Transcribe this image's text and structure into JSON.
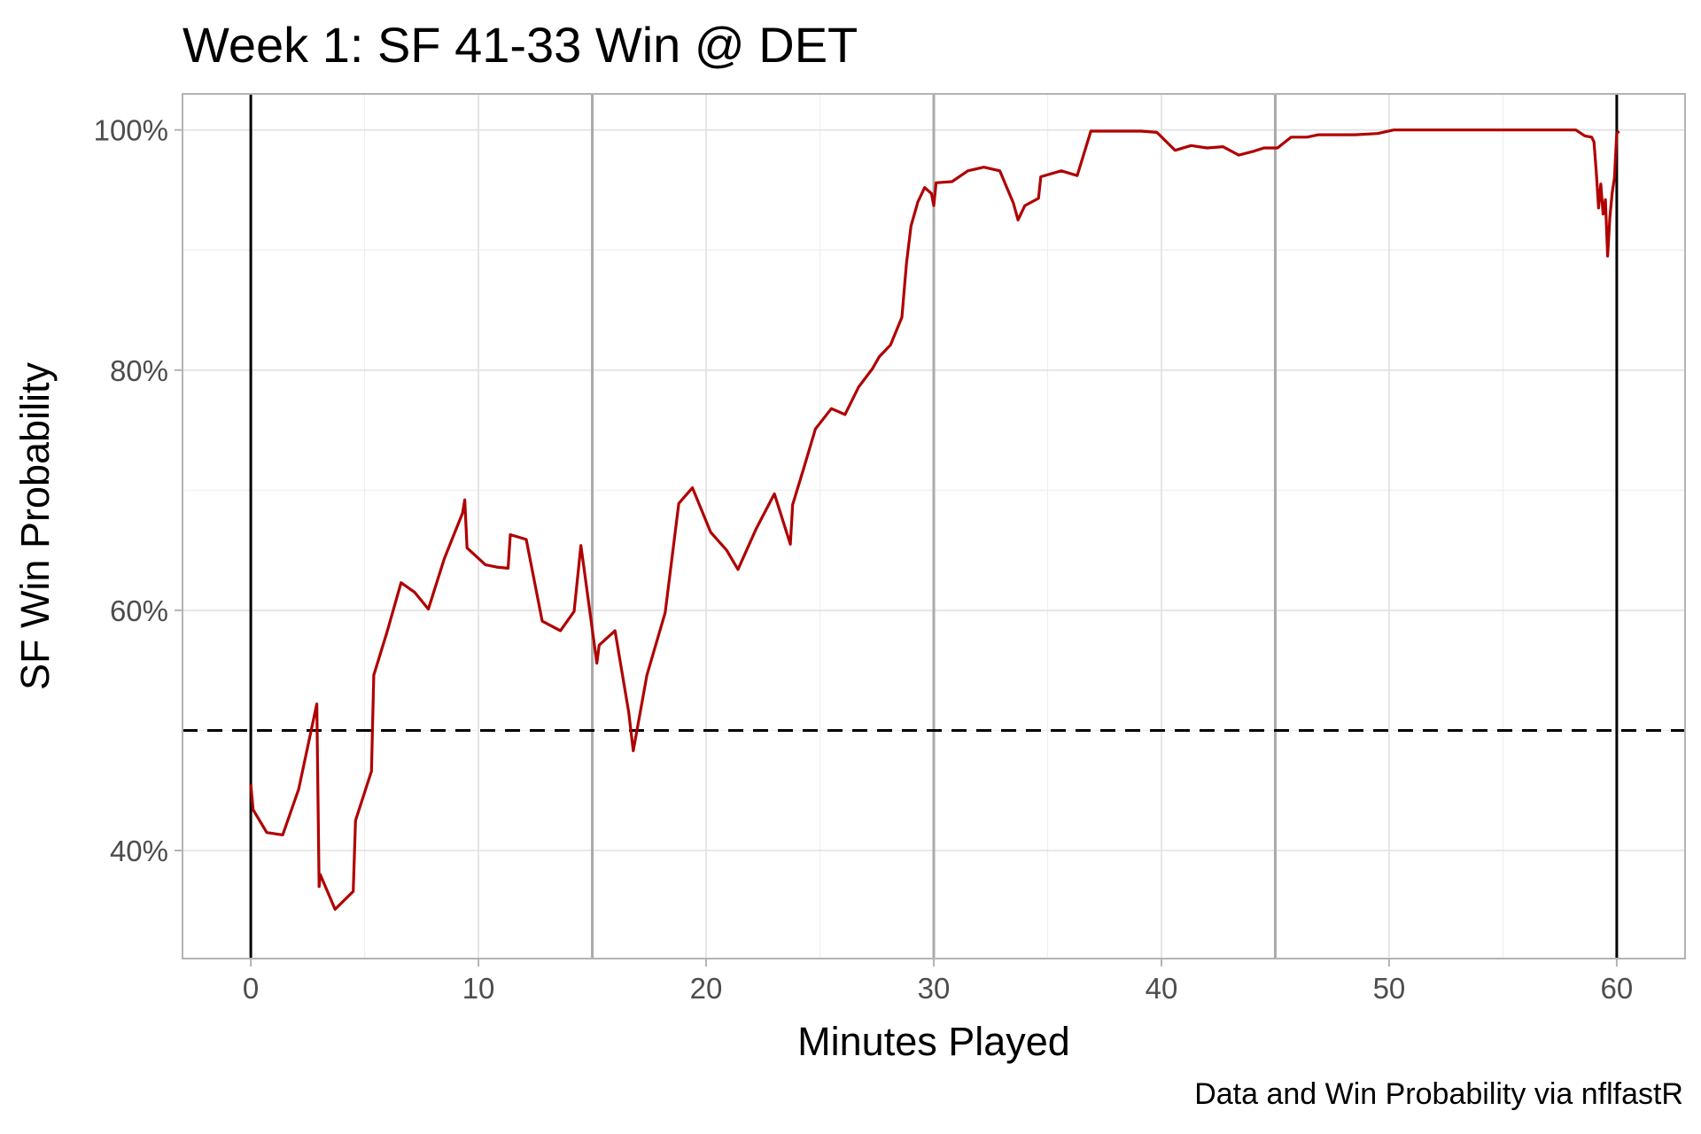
{
  "chart_data": {
    "type": "line",
    "title": "Week 1: SF 41-33 Win @ DET",
    "caption": "Data and Win Probability via nflfastR",
    "xlabel": "Minutes Played",
    "ylabel": "SF Win Probability",
    "xlim": [
      -3,
      63
    ],
    "ylim": [
      0.31,
      1.03
    ],
    "x_ticks": [
      0,
      10,
      20,
      30,
      40,
      50,
      60
    ],
    "x_tick_labels": [
      "0",
      "10",
      "20",
      "30",
      "40",
      "50",
      "60"
    ],
    "y_ticks": [
      0.4,
      0.6,
      0.8,
      1.0
    ],
    "y_tick_labels": [
      "40%",
      "60%",
      "80%",
      "100%"
    ],
    "grid": true,
    "reference_lines": {
      "horizontal_dashed": 0.5,
      "game_bounds": [
        0,
        60
      ],
      "quarter_marks": [
        15,
        30,
        45
      ]
    },
    "colors": {
      "line": "#b00000",
      "reference": "#000000",
      "quarter": "#aaaaaa",
      "grid": "#e0e0e0"
    },
    "series": [
      {
        "values": [
          [
            0.0,
            0.455
          ],
          [
            0.1,
            0.434
          ],
          [
            0.7,
            0.415
          ],
          [
            1.4,
            0.413
          ],
          [
            2.1,
            0.451
          ],
          [
            2.9,
            0.522
          ],
          [
            3.0,
            0.37
          ],
          [
            3.05,
            0.38
          ],
          [
            3.7,
            0.351
          ],
          [
            4.5,
            0.366
          ],
          [
            4.6,
            0.425
          ],
          [
            5.3,
            0.466
          ],
          [
            5.4,
            0.546
          ],
          [
            6.0,
            0.583
          ],
          [
            6.6,
            0.623
          ],
          [
            7.2,
            0.615
          ],
          [
            7.8,
            0.601
          ],
          [
            8.5,
            0.643
          ],
          [
            9.3,
            0.681
          ],
          [
            9.4,
            0.692
          ],
          [
            9.5,
            0.652
          ],
          [
            10.3,
            0.638
          ],
          [
            10.8,
            0.636
          ],
          [
            11.3,
            0.635
          ],
          [
            11.4,
            0.663
          ],
          [
            12.1,
            0.659
          ],
          [
            12.8,
            0.591
          ],
          [
            13.6,
            0.583
          ],
          [
            14.2,
            0.599
          ],
          [
            14.5,
            0.654
          ],
          [
            15.2,
            0.556
          ],
          [
            15.3,
            0.571
          ],
          [
            16.0,
            0.583
          ],
          [
            16.6,
            0.515
          ],
          [
            16.8,
            0.483
          ],
          [
            17.4,
            0.546
          ],
          [
            18.2,
            0.598
          ],
          [
            18.8,
            0.689
          ],
          [
            19.4,
            0.702
          ],
          [
            20.2,
            0.665
          ],
          [
            20.9,
            0.65
          ],
          [
            21.4,
            0.634
          ],
          [
            22.2,
            0.668
          ],
          [
            23.0,
            0.697
          ],
          [
            23.7,
            0.655
          ],
          [
            23.8,
            0.688
          ],
          [
            24.3,
            0.719
          ],
          [
            24.8,
            0.751
          ],
          [
            25.5,
            0.768
          ],
          [
            26.1,
            0.763
          ],
          [
            26.7,
            0.786
          ],
          [
            27.3,
            0.801
          ],
          [
            27.6,
            0.811
          ],
          [
            28.1,
            0.821
          ],
          [
            28.6,
            0.844
          ],
          [
            28.8,
            0.889
          ],
          [
            29.0,
            0.92
          ],
          [
            29.3,
            0.94
          ],
          [
            29.6,
            0.952
          ],
          [
            29.9,
            0.947
          ],
          [
            30.0,
            0.937
          ],
          [
            30.1,
            0.956
          ],
          [
            30.8,
            0.957
          ],
          [
            31.5,
            0.966
          ],
          [
            32.2,
            0.969
          ],
          [
            32.9,
            0.966
          ],
          [
            33.5,
            0.939
          ],
          [
            33.7,
            0.925
          ],
          [
            34.0,
            0.937
          ],
          [
            34.6,
            0.943
          ],
          [
            34.7,
            0.961
          ],
          [
            35.6,
            0.966
          ],
          [
            36.3,
            0.962
          ],
          [
            36.9,
            0.999
          ],
          [
            38.4,
            0.999
          ],
          [
            39.1,
            0.999
          ],
          [
            39.8,
            0.998
          ],
          [
            40.6,
            0.983
          ],
          [
            41.3,
            0.987
          ],
          [
            42.0,
            0.985
          ],
          [
            42.7,
            0.986
          ],
          [
            43.4,
            0.979
          ],
          [
            44.0,
            0.982
          ],
          [
            44.5,
            0.985
          ],
          [
            45.1,
            0.985
          ],
          [
            45.7,
            0.994
          ],
          [
            46.4,
            0.994
          ],
          [
            46.9,
            0.996
          ],
          [
            48.5,
            0.996
          ],
          [
            49.5,
            0.997
          ],
          [
            50.2,
            1.0
          ],
          [
            55.0,
            1.0
          ],
          [
            58.2,
            1.0
          ],
          [
            58.6,
            0.995
          ],
          [
            58.9,
            0.994
          ],
          [
            59.0,
            0.99
          ],
          [
            59.1,
            0.965
          ],
          [
            59.2,
            0.935
          ],
          [
            59.3,
            0.955
          ],
          [
            59.4,
            0.93
          ],
          [
            59.5,
            0.942
          ],
          [
            59.6,
            0.895
          ],
          [
            59.7,
            0.928
          ],
          [
            59.8,
            0.948
          ],
          [
            59.9,
            0.96
          ],
          [
            60.0,
            0.997
          ],
          [
            60.1,
            0.999
          ]
        ]
      }
    ]
  }
}
